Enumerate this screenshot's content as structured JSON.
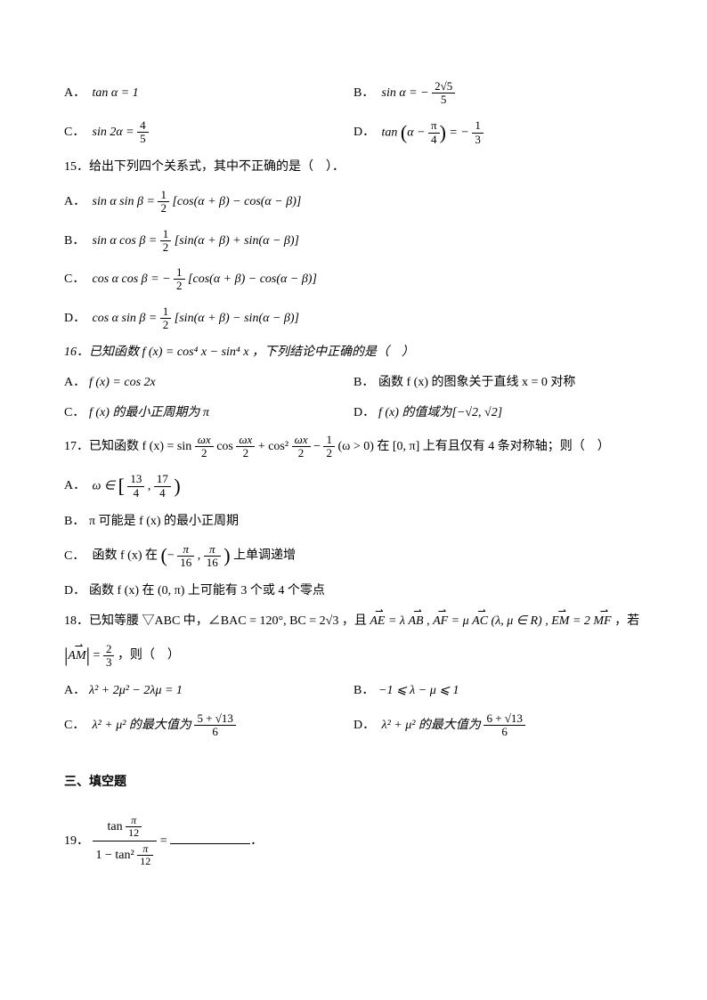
{
  "q14": {
    "A": "tan α = 1",
    "B_prefix": "sin α = −",
    "B_frac_num": "2√5",
    "B_frac_den": "5",
    "C_prefix": "sin 2α = ",
    "C_frac_num": "4",
    "C_frac_den": "5",
    "D_prefix": "tan",
    "D_inner_num": "π",
    "D_inner_den": "4",
    "D_eq": " = −",
    "D_frac_num": "1",
    "D_frac_den": "3"
  },
  "q15": {
    "stem": "15．给出下列四个关系式，其中不正确的是（　）．",
    "A_prefix": "sin α sin β = ",
    "A_frac_num": "1",
    "A_frac_den": "2",
    "A_rest": "[cos(α + β) − cos(α − β)]",
    "B_prefix": "sin α cos β = ",
    "B_frac_num": "1",
    "B_frac_den": "2",
    "B_rest": "[sin(α + β) + sin(α − β)]",
    "C_prefix": "cos α cos β = −",
    "C_frac_num": "1",
    "C_frac_den": "2",
    "C_rest": "[cos(α + β) − cos(α − β)]",
    "D_prefix": "cos α sin β = ",
    "D_frac_num": "1",
    "D_frac_den": "2",
    "D_rest": "[sin(α + β) − sin(α − β)]"
  },
  "q16": {
    "stem": "16．已知函数 f (x) = cos⁴ x − sin⁴ x ，下列结论中正确的是（　）",
    "A": "f (x) = cos 2x",
    "B": "函数 f (x) 的图象关于直线 x = 0 对称",
    "C": "f (x) 的最小正周期为 π",
    "D_prefix": "f (x) 的值域为",
    "D_range": "[−√2, √2]"
  },
  "q17": {
    "stem_prefix": "17．已知函数 f (x) = sin ",
    "stem_f1n": "ωx",
    "stem_f1d": "2",
    "stem_mid1": " cos ",
    "stem_f2n": "ωx",
    "stem_f2d": "2",
    "stem_mid2": " + cos² ",
    "stem_f3n": "ωx",
    "stem_f3d": "2",
    "stem_mid3": " − ",
    "stem_f4n": "1",
    "stem_f4d": "2",
    "stem_rest": "(ω > 0) 在 [0, π] 上有且仅有 4 条对称轴；则（　）",
    "A_prefix": "ω ∈ ",
    "A_l_num": "13",
    "A_l_den": "4",
    "A_r_num": "17",
    "A_r_den": "4",
    "B": "π 可能是 f (x) 的最小正周期",
    "C_prefix": "函数 f (x) 在 ",
    "C_l_num": "π",
    "C_l_den": "16",
    "C_r_num": "π",
    "C_r_den": "16",
    "C_suffix": " 上单调递增",
    "D": "函数 f (x) 在 (0, π) 上可能有 3 个或 4 个零点"
  },
  "q18": {
    "stem_prefix": "18．已知等腰 ▽ABC 中，∠BAC = 120°, BC = 2√3 ，且 ",
    "stem_mid1": " = λ",
    "stem_mid2": " , ",
    "stem_mid3": " = μ",
    "stem_mid4": " (λ, μ ∈ R) , ",
    "stem_mid5": " = 2",
    "stem_mid6": " ，若",
    "stem2_prefix": " = ",
    "stem2_num": "2",
    "stem2_den": "3",
    "stem2_suffix": "，则（　）",
    "A": "λ² + 2μ² − 2λμ = 1",
    "B": "−1 ⩽ λ − μ ⩽ 1",
    "C_prefix": "λ² + μ² 的最大值为 ",
    "C_num": "5 + √13",
    "C_den": "6",
    "D_prefix": "λ² + μ² 的最大值为 ",
    "D_num": "6 + √13",
    "D_den": "6"
  },
  "section3": "三、填空题",
  "q19": {
    "num_prefix": "19．",
    "top_num": "π",
    "top_den": "12",
    "bot_num": "π",
    "bot_den": "12",
    "eq": " = "
  }
}
